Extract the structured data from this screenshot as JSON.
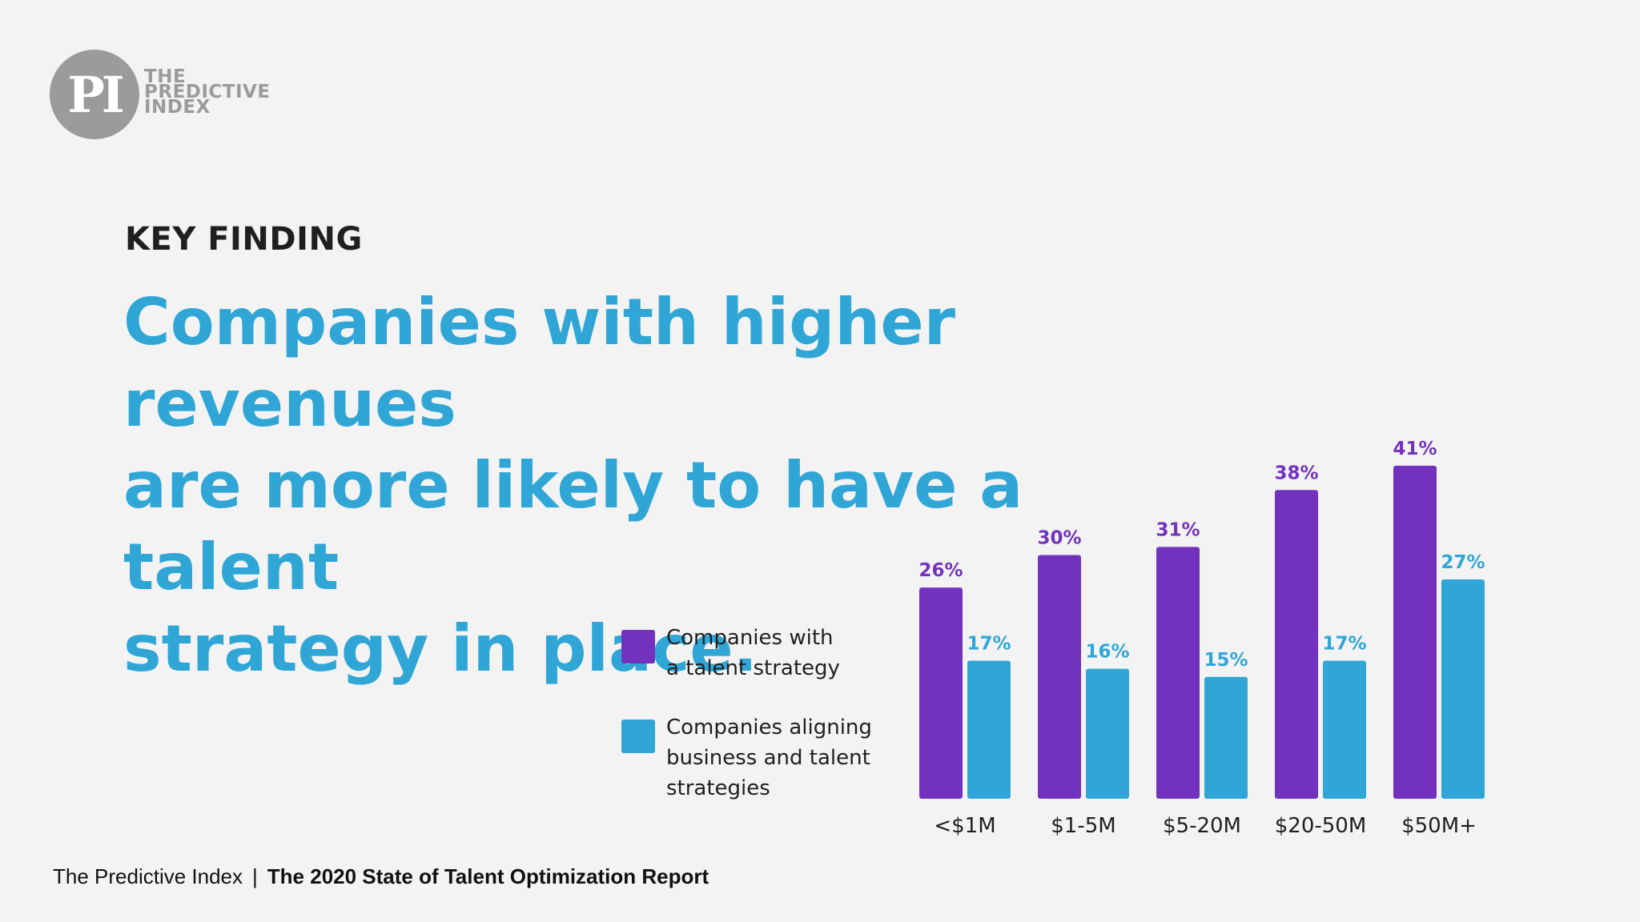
{
  "logo": {
    "mark": "PI",
    "line1": "THE",
    "line2": "PREDICTIVE",
    "line3": "INDEX"
  },
  "kicker": "KEY FINDING",
  "headline": {
    "line1": "Companies with higher revenues",
    "line2": "are more likely to have a talent",
    "line3": "strategy in place."
  },
  "colors": {
    "purple": "#7232bd",
    "blue": "#30a6d6",
    "background": "#f3f3f3",
    "logo_gray": "#9b9b9b"
  },
  "legend": [
    {
      "label_line1": "Companies with",
      "label_line2": "a talent strategy",
      "label_line3": "",
      "color": "#7232bd"
    },
    {
      "label_line1": "Companies aligning",
      "label_line2": "business and talent",
      "label_line3": "strategies",
      "color": "#30a6d6"
    }
  ],
  "chart_data": {
    "type": "bar",
    "categories": [
      "<$1M",
      "$1-5M",
      "$5-20M",
      "$20-50M",
      "$50M+"
    ],
    "series": [
      {
        "name": "Companies with a talent strategy",
        "values": [
          26,
          30,
          31,
          38,
          41
        ],
        "labels": [
          "26%",
          "30%",
          "31%",
          "38%",
          "41%"
        ],
        "color": "#7232bd"
      },
      {
        "name": "Companies aligning business and talent strategies",
        "values": [
          17,
          16,
          15,
          17,
          27
        ],
        "labels": [
          "17%",
          "16%",
          "15%",
          "17%",
          "27%"
        ],
        "color": "#30a6d6"
      }
    ],
    "ylim": [
      0,
      45
    ],
    "grid": false,
    "legend_position": "left"
  },
  "footer": {
    "brand": "The Predictive Index",
    "separator": "|",
    "report": "The 2020 State of Talent Optimization Report"
  }
}
